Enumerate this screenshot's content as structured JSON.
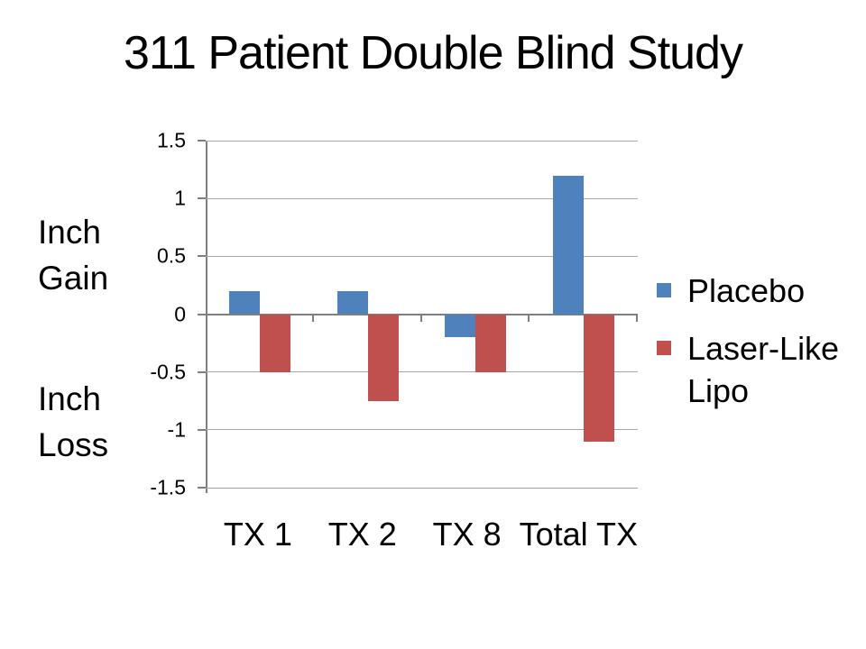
{
  "slide": {
    "title": "311 Patient Double Blind Study"
  },
  "side_labels": {
    "gain": "Inch Gain",
    "loss": "Inch Loss"
  },
  "chart_data": {
    "type": "bar",
    "title": "311 Patient Double Blind Study",
    "categories": [
      "TX 1",
      "TX 2",
      "TX 8",
      "Total TX"
    ],
    "series": [
      {
        "name": "Placebo",
        "color": "#4F81BD",
        "values": [
          0.2,
          0.2,
          -0.2,
          1.2
        ]
      },
      {
        "name": "Laser-Like Lipo",
        "color": "#C0504D",
        "values": [
          -0.5,
          -0.75,
          -0.5,
          -1.1
        ]
      },
      {
        "name": "",
        "color": "",
        "values": []
      }
    ],
    "ylim": [
      -1.5,
      1.5
    ],
    "yticks": [
      1.5,
      1,
      0.5,
      0,
      -0.5,
      -1,
      -1.5
    ],
    "ytick_labels": [
      "1.5",
      "1",
      "0.5",
      "0",
      "-0.5",
      "-1",
      "-1.5"
    ],
    "xlabel": "",
    "ylabel": "",
    "grid": "horizontal",
    "legend_position": "right",
    "annotations": [
      "Inch Gain",
      "Inch Loss"
    ],
    "colors": {
      "gridline": "#A6A6A6",
      "axis": "#7F7F7F",
      "background": "#FFFFFF",
      "text": "#000000"
    }
  }
}
